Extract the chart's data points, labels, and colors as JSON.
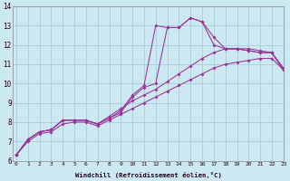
{
  "bg_color": "#cce8f0",
  "grid_color": "#aaccdd",
  "line_color": "#993399",
  "xlabel": "Windchill (Refroidissement éolien,°C)",
  "series": [
    {
      "x": [
        0,
        1,
        2,
        3,
        4,
        5,
        6,
        7,
        8,
        9,
        10,
        11,
        12,
        13,
        14,
        15,
        16,
        17,
        18,
        19,
        20,
        21,
        22,
        23
      ],
      "y": [
        6.3,
        7.1,
        7.5,
        7.6,
        8.1,
        8.1,
        8.1,
        7.9,
        8.2,
        8.6,
        9.4,
        9.9,
        13.0,
        12.9,
        12.9,
        13.4,
        13.2,
        12.4,
        11.8,
        11.8,
        11.7,
        11.6,
        11.6,
        10.7
      ]
    },
    {
      "x": [
        0,
        1,
        2,
        3,
        4,
        5,
        6,
        7,
        8,
        9,
        10,
        11,
        12,
        13,
        14,
        15,
        16,
        17,
        18,
        19,
        20,
        21,
        22,
        23
      ],
      "y": [
        6.3,
        7.1,
        7.5,
        7.6,
        8.1,
        8.1,
        8.1,
        7.9,
        8.2,
        8.5,
        9.3,
        9.8,
        10.0,
        12.9,
        12.9,
        13.4,
        13.2,
        12.0,
        11.8,
        11.8,
        11.7,
        11.6,
        11.6,
        10.7
      ]
    },
    {
      "x": [
        0,
        1,
        2,
        3,
        4,
        5,
        6,
        7,
        8,
        9,
        10,
        11,
        12,
        13,
        14,
        15,
        16,
        17,
        18,
        19,
        20,
        21,
        22,
        23
      ],
      "y": [
        6.3,
        7.1,
        7.5,
        7.6,
        8.1,
        8.1,
        8.1,
        7.9,
        8.3,
        8.7,
        9.1,
        9.4,
        9.7,
        10.1,
        10.5,
        10.9,
        11.3,
        11.6,
        11.8,
        11.8,
        11.8,
        11.7,
        11.6,
        10.8
      ]
    },
    {
      "x": [
        0,
        1,
        2,
        3,
        4,
        5,
        6,
        7,
        8,
        9,
        10,
        11,
        12,
        13,
        14,
        15,
        16,
        17,
        18,
        19,
        20,
        21,
        22,
        23
      ],
      "y": [
        6.3,
        7.0,
        7.4,
        7.5,
        7.9,
        8.0,
        8.0,
        7.8,
        8.1,
        8.4,
        8.7,
        9.0,
        9.3,
        9.6,
        9.9,
        10.2,
        10.5,
        10.8,
        11.0,
        11.1,
        11.2,
        11.3,
        11.3,
        10.7
      ]
    }
  ],
  "ylim": [
    6,
    14
  ],
  "xlim": [
    -0.3,
    23
  ],
  "yticks": [
    6,
    7,
    8,
    9,
    10,
    11,
    12,
    13,
    14
  ],
  "xticks": [
    0,
    1,
    2,
    3,
    4,
    5,
    6,
    7,
    8,
    9,
    10,
    11,
    12,
    13,
    14,
    15,
    16,
    17,
    18,
    19,
    20,
    21,
    22,
    23
  ]
}
